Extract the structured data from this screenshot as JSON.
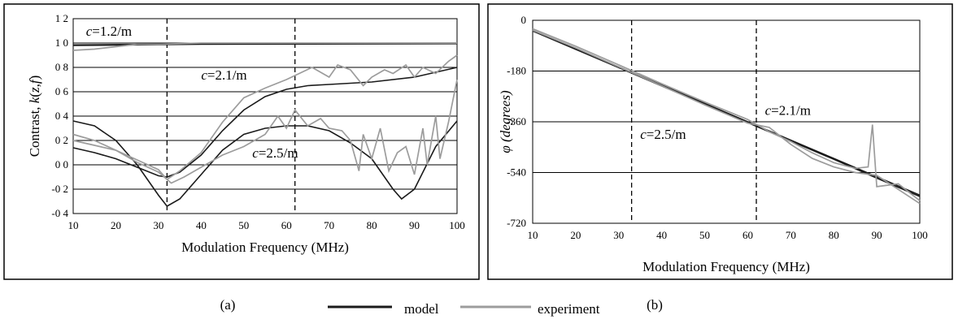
{
  "colors": {
    "model": "#1a1a1a",
    "experiment": "#9c9c9c"
  },
  "legend": {
    "model_label": "model",
    "experiment_label": "experiment"
  },
  "chart_data": [
    {
      "type": "line",
      "panel_label": "(a)",
      "xlabel": "Modulation Frequency (MHz)",
      "ylabel": "Contrast, k(z,f)",
      "ylabel_parts": [
        "Contrast, ",
        "k",
        "(",
        "z",
        ",",
        "f",
        ")"
      ],
      "xlim": [
        10,
        100
      ],
      "ylim": [
        -0.4,
        1.2
      ],
      "x_ticks": [
        10,
        20,
        30,
        40,
        50,
        60,
        70,
        80,
        90,
        100
      ],
      "x_tick_labels": [
        "10",
        "20",
        "30",
        "40",
        "50",
        "60",
        "70",
        "80",
        "90",
        "100"
      ],
      "y_ticks": [
        1.2,
        1.0,
        0.8,
        0.6,
        0.4,
        0.2,
        0.0,
        -0.2,
        -0.4
      ],
      "y_tick_labels": [
        "1 2",
        "1 0",
        "0 8",
        "0 6",
        "0 4",
        "0 2",
        "0 0",
        "-0 2",
        "-0 4"
      ],
      "grid": "horizontal",
      "vlines": [
        32,
        62
      ],
      "annotations": [
        {
          "text": "c=1.2/m",
          "x": 13,
          "y": 1.06
        },
        {
          "text": "c=2.1/m",
          "x": 40,
          "y": 0.7
        },
        {
          "text": "c=2.5/m",
          "x": 52,
          "y": 0.06
        }
      ],
      "series": [
        {
          "kind": "model",
          "values": [
            [
              10,
              0.985
            ],
            [
              30,
              0.99
            ],
            [
              60,
              0.997
            ],
            [
              100,
              1.0
            ]
          ]
        },
        {
          "kind": "model",
          "values": [
            [
              10,
              0.98
            ],
            [
              40,
              0.99
            ],
            [
              100,
              0.995
            ]
          ]
        },
        {
          "kind": "model",
          "values": [
            [
              10,
              0.14
            ],
            [
              15,
              0.1
            ],
            [
              20,
              0.05
            ],
            [
              25,
              -0.02
            ],
            [
              30,
              -0.09
            ],
            [
              32,
              -0.1
            ],
            [
              35,
              -0.06
            ],
            [
              40,
              0.08
            ],
            [
              45,
              0.28
            ],
            [
              50,
              0.45
            ],
            [
              55,
              0.56
            ],
            [
              60,
              0.62
            ],
            [
              65,
              0.65
            ],
            [
              70,
              0.66
            ],
            [
              80,
              0.68
            ],
            [
              90,
              0.72
            ],
            [
              100,
              0.8
            ]
          ]
        },
        {
          "kind": "model",
          "values": [
            [
              10,
              0.36
            ],
            [
              15,
              0.32
            ],
            [
              20,
              0.2
            ],
            [
              25,
              0.0
            ],
            [
              30,
              -0.25
            ],
            [
              32,
              -0.34
            ],
            [
              35,
              -0.28
            ],
            [
              40,
              -0.08
            ],
            [
              45,
              0.12
            ],
            [
              50,
              0.25
            ],
            [
              55,
              0.3
            ],
            [
              60,
              0.32
            ],
            [
              65,
              0.32
            ],
            [
              70,
              0.28
            ],
            [
              75,
              0.18
            ],
            [
              80,
              0.05
            ],
            [
              85,
              -0.2
            ],
            [
              87,
              -0.28
            ],
            [
              90,
              -0.2
            ],
            [
              95,
              0.15
            ],
            [
              100,
              0.36
            ]
          ]
        },
        {
          "kind": "experiment",
          "values": [
            [
              10,
              0.94
            ],
            [
              15,
              0.95
            ],
            [
              20,
              0.97
            ],
            [
              25,
              0.99
            ],
            [
              30,
              0.99
            ],
            [
              40,
              1.0
            ],
            [
              60,
              1.0
            ],
            [
              80,
              1.0
            ],
            [
              100,
              1.0
            ]
          ]
        },
        {
          "kind": "experiment",
          "values": [
            [
              10,
              0.2
            ],
            [
              15,
              0.16
            ],
            [
              20,
              0.12
            ],
            [
              25,
              0.04
            ],
            [
              30,
              -0.04
            ],
            [
              32,
              -0.12
            ],
            [
              35,
              -0.05
            ],
            [
              40,
              0.1
            ],
            [
              45,
              0.35
            ],
            [
              50,
              0.55
            ],
            [
              55,
              0.63
            ],
            [
              60,
              0.7
            ],
            [
              63,
              0.75
            ],
            [
              66,
              0.8
            ],
            [
              70,
              0.72
            ],
            [
              72,
              0.82
            ],
            [
              75,
              0.78
            ],
            [
              78,
              0.65
            ],
            [
              80,
              0.72
            ],
            [
              83,
              0.78
            ],
            [
              85,
              0.75
            ],
            [
              88,
              0.82
            ],
            [
              90,
              0.72
            ],
            [
              92,
              0.8
            ],
            [
              95,
              0.75
            ],
            [
              98,
              0.85
            ],
            [
              100,
              0.9
            ]
          ]
        },
        {
          "kind": "experiment",
          "values": [
            [
              10,
              0.25
            ],
            [
              15,
              0.2
            ],
            [
              20,
              0.12
            ],
            [
              25,
              0.02
            ],
            [
              30,
              -0.06
            ],
            [
              33,
              -0.15
            ],
            [
              36,
              -0.1
            ],
            [
              40,
              -0.02
            ],
            [
              45,
              0.08
            ],
            [
              50,
              0.15
            ],
            [
              55,
              0.25
            ],
            [
              58,
              0.4
            ],
            [
              60,
              0.3
            ],
            [
              62,
              0.45
            ],
            [
              65,
              0.32
            ],
            [
              68,
              0.38
            ],
            [
              70,
              0.3
            ],
            [
              73,
              0.28
            ],
            [
              75,
              0.2
            ],
            [
              77,
              -0.05
            ],
            [
              78,
              0.25
            ],
            [
              80,
              0.05
            ],
            [
              82,
              0.3
            ],
            [
              84,
              -0.05
            ],
            [
              86,
              0.1
            ],
            [
              88,
              0.15
            ],
            [
              90,
              -0.08
            ],
            [
              92,
              0.3
            ],
            [
              93,
              0.0
            ],
            [
              95,
              0.4
            ],
            [
              96,
              0.05
            ],
            [
              98,
              0.35
            ],
            [
              100,
              0.7
            ]
          ]
        }
      ]
    },
    {
      "type": "line",
      "panel_label": "(b)",
      "xlabel": "Modulation Frequency (MHz)",
      "ylabel": "φ (degrees)",
      "xlim": [
        10,
        100
      ],
      "ylim": [
        -720,
        0
      ],
      "x_ticks": [
        10,
        20,
        30,
        40,
        50,
        60,
        70,
        80,
        90,
        100
      ],
      "x_tick_labels": [
        "10",
        "20",
        "30",
        "40",
        "50",
        "60",
        "70",
        "80",
        "90",
        "100"
      ],
      "y_ticks": [
        0,
        -180,
        -360,
        -540,
        -720
      ],
      "y_tick_labels": [
        "0",
        "-180",
        "-360",
        "-540",
        "-720"
      ],
      "grid": "horizontal",
      "vlines": [
        33,
        62
      ],
      "annotations": [
        {
          "text": "c=2.1/m",
          "x": 64,
          "y": -335
        },
        {
          "text": "c=2.5/m",
          "x": 35,
          "y": -420
        }
      ],
      "series": [
        {
          "kind": "model",
          "values": [
            [
              10,
              -35
            ],
            [
              20,
              -100
            ],
            [
              30,
              -165
            ],
            [
              40,
              -230
            ],
            [
              50,
              -295
            ],
            [
              60,
              -360
            ],
            [
              70,
              -425
            ],
            [
              80,
              -490
            ],
            [
              90,
              -555
            ],
            [
              100,
              -620
            ]
          ]
        },
        {
          "kind": "model",
          "values": [
            [
              10,
              -38
            ],
            [
              20,
              -103
            ],
            [
              30,
              -168
            ],
            [
              40,
              -233
            ],
            [
              50,
              -298
            ],
            [
              60,
              -363
            ],
            [
              70,
              -428
            ],
            [
              80,
              -493
            ],
            [
              90,
              -560
            ],
            [
              100,
              -625
            ]
          ]
        },
        {
          "kind": "experiment",
          "values": [
            [
              10,
              -30
            ],
            [
              20,
              -92
            ],
            [
              30,
              -158
            ],
            [
              40,
              -225
            ],
            [
              50,
              -290
            ],
            [
              60,
              -352
            ],
            [
              65,
              -395
            ],
            [
              70,
              -430
            ],
            [
              75,
              -470
            ],
            [
              80,
              -505
            ],
            [
              85,
              -525
            ],
            [
              88,
              -520
            ],
            [
              89,
              -370
            ],
            [
              90,
              -590
            ],
            [
              95,
              -580
            ],
            [
              100,
              -640
            ]
          ]
        },
        {
          "kind": "experiment",
          "values": [
            [
              10,
              -35
            ],
            [
              20,
              -98
            ],
            [
              30,
              -165
            ],
            [
              40,
              -232
            ],
            [
              50,
              -300
            ],
            [
              60,
              -365
            ],
            [
              65,
              -380
            ],
            [
              70,
              -440
            ],
            [
              75,
              -490
            ],
            [
              80,
              -520
            ],
            [
              85,
              -540
            ],
            [
              90,
              -550
            ],
            [
              95,
              -600
            ],
            [
              100,
              -650
            ]
          ]
        }
      ]
    }
  ]
}
